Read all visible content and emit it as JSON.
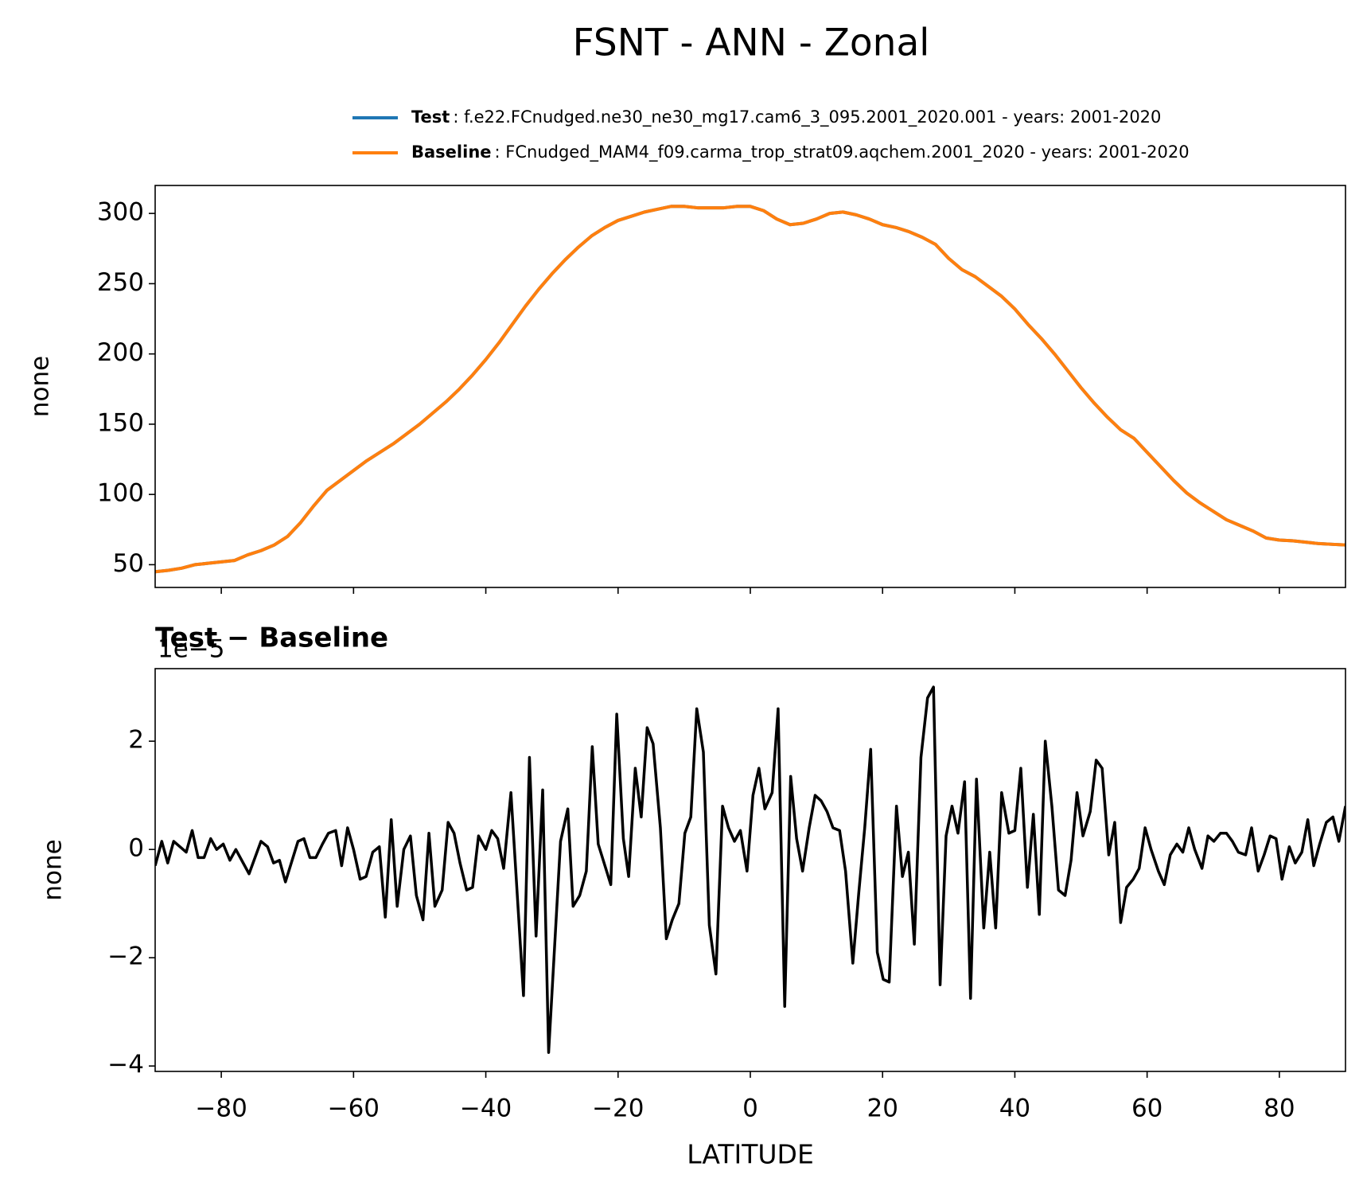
{
  "chart_data": [
    {
      "type": "line",
      "title": "FSNT - ANN - Zonal",
      "ylabel": "none",
      "xlim": [
        -90,
        90
      ],
      "ylim": [
        33.8,
        319.9
      ],
      "yticks": [
        50,
        100,
        150,
        200,
        250,
        300
      ],
      "x": [
        -90,
        -88,
        -86,
        -84,
        -82,
        -80,
        -78,
        -76,
        -74,
        -72,
        -70,
        -68,
        -66,
        -64,
        -62,
        -60,
        -58,
        -56,
        -54,
        -52,
        -50,
        -48,
        -46,
        -44,
        -42,
        -40,
        -38,
        -36,
        -34,
        -32,
        -30,
        -28,
        -26,
        -24,
        -22,
        -20,
        -18,
        -16,
        -14,
        -12,
        -10,
        -8,
        -6,
        -4,
        -2,
        0,
        2,
        4,
        6,
        8,
        10,
        12,
        14,
        16,
        18,
        20,
        22,
        24,
        26,
        28,
        30,
        32,
        34,
        36,
        38,
        40,
        42,
        44,
        46,
        48,
        50,
        52,
        54,
        56,
        58,
        60,
        62,
        64,
        66,
        68,
        70,
        72,
        74,
        76,
        78,
        80,
        82,
        84,
        86,
        88,
        90
      ],
      "series": [
        {
          "name": "Test",
          "description": ": f.e22.FCnudged.ne30_ne30_mg17.cam6_3_095.2001_2020.001 - years: 2001-2020",
          "color": "#1f77b4",
          "values": [
            45,
            46,
            47.5,
            50,
            51,
            52,
            53,
            57,
            60,
            64,
            70,
            80,
            92,
            103,
            110,
            117,
            124,
            130,
            136,
            143,
            150,
            158,
            166,
            175,
            185,
            196,
            208,
            221,
            234,
            246,
            257,
            267,
            276,
            284,
            290,
            295,
            298,
            301,
            303,
            305,
            305,
            304,
            304,
            304,
            305,
            305,
            302,
            296,
            292,
            293,
            296,
            300,
            301,
            299,
            296,
            292,
            290,
            287,
            283,
            278,
            268,
            260,
            255,
            248,
            241,
            232,
            221,
            211,
            200,
            188,
            176,
            165,
            155,
            146,
            140,
            130,
            120,
            110,
            101,
            94,
            88,
            82,
            78,
            74,
            69,
            67.5,
            67,
            66,
            65,
            64.5,
            64
          ]
        },
        {
          "name": "Baseline",
          "description": ": FCnudged_MAM4_f09.carma_trop_strat09.aqchem.2001_2020 - years: 2001-2020",
          "color": "#ff7f0e",
          "values": [
            45,
            46,
            47.5,
            50,
            51,
            52,
            53,
            57,
            60,
            64,
            70,
            80,
            92,
            103,
            110,
            117,
            124,
            130,
            136,
            143,
            150,
            158,
            166,
            175,
            185,
            196,
            208,
            221,
            234,
            246,
            257,
            267,
            276,
            284,
            290,
            295,
            298,
            301,
            303,
            305,
            305,
            304,
            304,
            304,
            305,
            305,
            302,
            296,
            292,
            293,
            296,
            300,
            301,
            299,
            296,
            292,
            290,
            287,
            283,
            278,
            268,
            260,
            255,
            248,
            241,
            232,
            221,
            211,
            200,
            188,
            176,
            165,
            155,
            146,
            140,
            130,
            120,
            110,
            101,
            94,
            88,
            82,
            78,
            74,
            69,
            67.5,
            67,
            66,
            65,
            64.5,
            64
          ]
        }
      ]
    },
    {
      "type": "line",
      "title": "Test − Baseline",
      "offset_label": "1e−5",
      "xlabel": "LATITUDE",
      "ylabel": "none",
      "xlim": [
        -90,
        90
      ],
      "ylim": [
        -4.1,
        3.34
      ],
      "yticks": [
        {
          "value": -4,
          "label": "−4"
        },
        {
          "value": -2,
          "label": "−2"
        },
        0,
        2
      ],
      "xticks": [
        {
          "value": -80,
          "label": "−80"
        },
        {
          "value": -60,
          "label": "−60"
        },
        {
          "value": -40,
          "label": "−40"
        },
        {
          "value": -20,
          "label": "−20"
        },
        0,
        20,
        40,
        60,
        80
      ],
      "x": [
        -90,
        -89,
        -88.1,
        -87.2,
        -85.3,
        -84.4,
        -83.5,
        -82.6,
        -81.6,
        -80.7,
        -79.7,
        -78.7,
        -77.8,
        -75.8,
        -74,
        -73,
        -72.1,
        -71.2,
        -70.3,
        -68.4,
        -67.5,
        -66.6,
        -65.7,
        -64.7,
        -63.8,
        -62.7,
        -61.8,
        -60.9,
        -60,
        -59,
        -58.1,
        -57.1,
        -56.1,
        -55.2,
        -54.3,
        -53.4,
        -52.4,
        -51.4,
        -50.5,
        -49.5,
        -48.6,
        -47.7,
        -46.6,
        -45.7,
        -44.8,
        -43.9,
        -42.9,
        -42,
        -41.1,
        -40,
        -39.1,
        -38.2,
        -37.3,
        -36.2,
        -34.3,
        -33.4,
        -32.4,
        -31.4,
        -30.5,
        -28.7,
        -27.6,
        -26.8,
        -25.8,
        -24.8,
        -23.9,
        -23,
        -21.1,
        -20.2,
        -19.2,
        -18.4,
        -17.4,
        -16.5,
        -15.6,
        -14.7,
        -13.6,
        -12.7,
        -11.8,
        -10.8,
        -9.9,
        -9,
        -8.1,
        -7.1,
        -6.2,
        -5.2,
        -4.2,
        -3.3,
        -2.4,
        -1.5,
        -0.5,
        0.4,
        1.3,
        2.2,
        3.3,
        4.2,
        5.2,
        6.1,
        7,
        7.9,
        8.9,
        9.8,
        10.7,
        11.6,
        12.5,
        13.5,
        14.4,
        15.5,
        16.4,
        17.3,
        18.2,
        19.2,
        20.1,
        21,
        22.1,
        23,
        23.9,
        24.8,
        25.8,
        26.8,
        27.7,
        28.7,
        29.6,
        30.5,
        31.4,
        32.4,
        33.3,
        34.2,
        35.3,
        36.2,
        37.1,
        38,
        39.1,
        40,
        40.9,
        41.9,
        42.8,
        43.7,
        44.6,
        45.6,
        46.6,
        47.6,
        48.5,
        49.4,
        50.3,
        51.4,
        52.3,
        53.2,
        54.2,
        55.1,
        56,
        56.9,
        57.9,
        58.8,
        59.7,
        60.6,
        61.7,
        62.6,
        63.5,
        64.5,
        65.4,
        66.3,
        67.2,
        68.3,
        69.2,
        70.1,
        71.1,
        72,
        72.9,
        73.8,
        74.9,
        75.8,
        76.8,
        77.7,
        78.6,
        79.5,
        80.4,
        81.5,
        82.4,
        83.4,
        84.3,
        85.2,
        86.1,
        87.1,
        88.1,
        89,
        90
      ],
      "series": [
        {
          "name": "Test − Baseline",
          "color": "#000000",
          "values": [
            -0.3,
            0.15,
            -0.25,
            0.15,
            -0.05,
            0.35,
            -0.15,
            -0.15,
            0.2,
            0,
            0.1,
            -0.2,
            0,
            -0.45,
            0.15,
            0.05,
            -0.25,
            -0.2,
            -0.6,
            0.15,
            0.2,
            -0.15,
            -0.15,
            0.1,
            0.3,
            0.35,
            -0.3,
            0.4,
            0,
            -0.55,
            -0.5,
            -0.05,
            0.05,
            -1.25,
            0.55,
            -1.05,
            0,
            0.25,
            -0.85,
            -1.3,
            0.3,
            -1.05,
            -0.75,
            0.5,
            0.3,
            -0.25,
            -0.75,
            -0.7,
            0.25,
            0,
            0.35,
            0.2,
            -0.35,
            1.05,
            -2.7,
            1.7,
            -1.6,
            1.1,
            -3.75,
            0.15,
            0.75,
            -1.05,
            -0.85,
            -0.4,
            1.9,
            0.1,
            -0.65,
            2.5,
            0.2,
            -0.5,
            1.5,
            0.6,
            2.25,
            1.95,
            0.4,
            -1.65,
            -1.3,
            -1,
            0.3,
            0.6,
            2.6,
            1.8,
            -1.4,
            -2.3,
            0.8,
            0.4,
            0.15,
            0.35,
            -0.4,
            1,
            1.5,
            0.75,
            1.05,
            2.6,
            -2.9,
            1.35,
            0.2,
            -0.4,
            0.4,
            1,
            0.9,
            0.7,
            0.4,
            0.35,
            -0.4,
            -2.1,
            -0.8,
            0.4,
            1.85,
            -1.9,
            -2.4,
            -2.45,
            0.8,
            -0.5,
            -0.05,
            -1.75,
            1.7,
            2.8,
            3,
            -2.5,
            0.25,
            0.8,
            0.3,
            1.25,
            -2.75,
            1.3,
            -1.45,
            -0.05,
            -1.45,
            1.05,
            0.3,
            0.35,
            1.5,
            -0.7,
            0.65,
            -1.2,
            2,
            0.8,
            -0.75,
            -0.85,
            -0.2,
            1.05,
            0.25,
            0.7,
            1.65,
            1.5,
            -0.1,
            0.5,
            -1.35,
            -0.7,
            -0.55,
            -0.35,
            0.4,
            0,
            -0.4,
            -0.65,
            -0.1,
            0.1,
            -0.05,
            0.4,
            0,
            -0.35,
            0.25,
            0.15,
            0.3,
            0.3,
            0.15,
            -0.05,
            -0.1,
            0.4,
            -0.4,
            -0.1,
            0.25,
            0.2,
            -0.55,
            0.05,
            -0.25,
            -0.05,
            0.55,
            -0.3,
            0.1,
            0.5,
            0.6,
            0.15,
            0.8
          ]
        }
      ]
    }
  ]
}
